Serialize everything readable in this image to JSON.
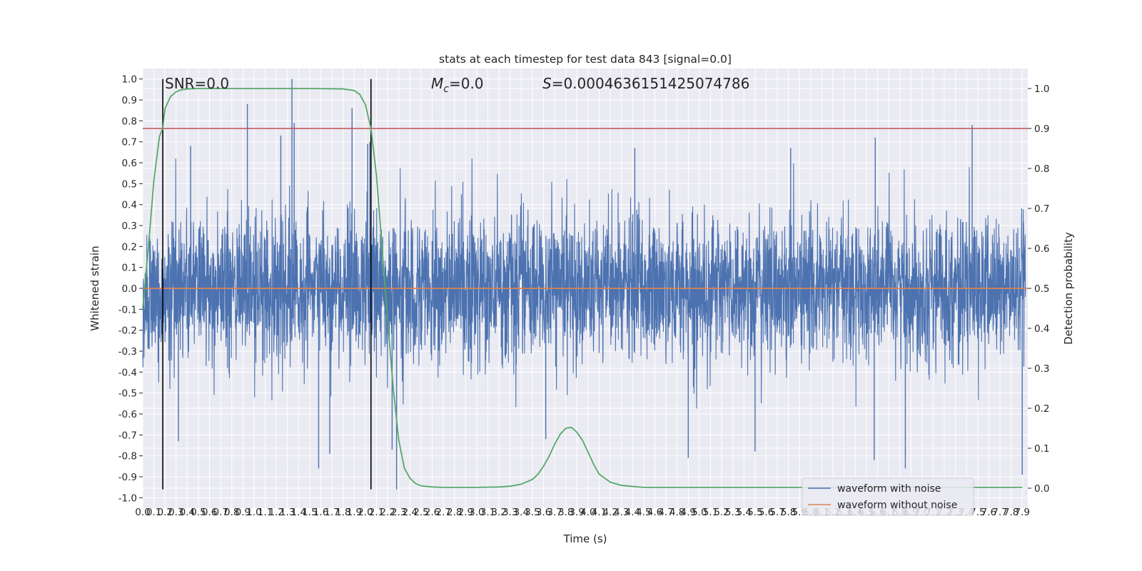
{
  "chart_data": {
    "type": "line",
    "title": "stats at each timestep for test data 843 [signal=0.0]",
    "xlabel": "Time (s)",
    "ylabel": "Whitened strain",
    "y2label": "Detection probability",
    "xlim": [
      0.0,
      7.95
    ],
    "ylim": [
      -1.05,
      1.05
    ],
    "y2lim": [
      -0.05,
      1.05
    ],
    "grid": true,
    "x_ticks_step": 0.1,
    "y_ticks": [
      -1.0,
      -0.9,
      -0.8,
      -0.7,
      -0.6,
      -0.5,
      -0.4,
      -0.3,
      -0.2,
      -0.1,
      0.0,
      0.1,
      0.2,
      0.3,
      0.4,
      0.5,
      0.6,
      0.7,
      0.8,
      0.9,
      1.0
    ],
    "y2_ticks": [
      0.0,
      0.1,
      0.2,
      0.3,
      0.4,
      0.5,
      0.6,
      0.7,
      0.8,
      0.9,
      1.0
    ],
    "annotations": {
      "snr": "SNR=0.0",
      "mc_symbol": "M",
      "mc_sub": "c",
      "mc_value": "=0.0",
      "s_symbol": "S",
      "s_value": "=0.0004636151425074786"
    },
    "threshold_line": {
      "y2": 0.9,
      "color": "#c44e52"
    },
    "vertical_lines": [
      {
        "x": 0.18,
        "ymin": -0.96,
        "ymax": 1.0
      },
      {
        "x": 2.05,
        "ymin": -0.96,
        "ymax": 1.0
      }
    ],
    "series": [
      {
        "name": "waveform with noise",
        "color": "#4c72b0",
        "axis": "left",
        "samples": 4096,
        "noise_sigma": 0.17,
        "peaks": [
          {
            "x": 0.94,
            "y": 0.88
          },
          {
            "x": 1.34,
            "y": 1.0
          },
          {
            "x": 1.36,
            "y": 0.79
          },
          {
            "x": 1.24,
            "y": 0.73
          },
          {
            "x": 1.88,
            "y": 0.86
          },
          {
            "x": 2.02,
            "y": 0.69
          },
          {
            "x": 2.04,
            "y": 0.7
          },
          {
            "x": 0.43,
            "y": 0.68
          },
          {
            "x": 7.45,
            "y": 0.78
          },
          {
            "x": 6.58,
            "y": 0.72
          },
          {
            "x": 4.42,
            "y": 0.67
          },
          {
            "x": 5.82,
            "y": 0.67
          },
          {
            "x": 1.58,
            "y": -0.86
          },
          {
            "x": 1.68,
            "y": -0.79
          },
          {
            "x": 2.28,
            "y": -0.96
          },
          {
            "x": 2.24,
            "y": -0.77
          },
          {
            "x": 0.32,
            "y": -0.73
          },
          {
            "x": 6.85,
            "y": -0.86
          },
          {
            "x": 6.57,
            "y": -0.82
          },
          {
            "x": 7.9,
            "y": -0.89
          },
          {
            "x": 4.9,
            "y": -0.81
          },
          {
            "x": 5.5,
            "y": -0.78
          },
          {
            "x": 3.62,
            "y": -0.72
          }
        ]
      },
      {
        "name": "waveform without noise",
        "color": "#dd8452",
        "axis": "left",
        "x": [
          0.0,
          7.95
        ],
        "y": [
          0.0,
          0.0
        ]
      },
      {
        "color": "#55a868",
        "axis": "right",
        "x": [
          0.0,
          0.05,
          0.1,
          0.15,
          0.18,
          0.2,
          0.25,
          0.3,
          0.35,
          0.4,
          0.5,
          0.6,
          0.8,
          1.0,
          1.5,
          1.8,
          1.9,
          1.95,
          2.0,
          2.05,
          2.1,
          2.15,
          2.2,
          2.25,
          2.3,
          2.35,
          2.4,
          2.45,
          2.5,
          2.6,
          2.7,
          2.8,
          3.0,
          3.2,
          3.3,
          3.4,
          3.5,
          3.55,
          3.6,
          3.65,
          3.7,
          3.75,
          3.8,
          3.85,
          3.9,
          3.95,
          4.0,
          4.05,
          4.1,
          4.2,
          4.3,
          4.5,
          5.0,
          6.0,
          7.0,
          7.9
        ],
        "y": [
          0.45,
          0.6,
          0.77,
          0.88,
          0.9,
          0.95,
          0.98,
          0.992,
          0.997,
          0.999,
          1.0,
          1.0,
          1.0,
          1.0,
          1.0,
          0.999,
          0.995,
          0.985,
          0.96,
          0.9,
          0.78,
          0.6,
          0.42,
          0.25,
          0.12,
          0.05,
          0.025,
          0.012,
          0.006,
          0.003,
          0.002,
          0.002,
          0.002,
          0.003,
          0.005,
          0.01,
          0.022,
          0.035,
          0.055,
          0.08,
          0.11,
          0.135,
          0.15,
          0.152,
          0.14,
          0.12,
          0.09,
          0.06,
          0.035,
          0.015,
          0.007,
          0.002,
          0.002,
          0.002,
          0.002,
          0.002
        ]
      }
    ],
    "legend": {
      "position": "lower-right",
      "entries": [
        {
          "label": "waveform with noise",
          "color": "#4c72b0"
        },
        {
          "label": "waveform without noise",
          "color": "#dd8452"
        }
      ]
    },
    "colors": {
      "plot_background": "#eaeaf2",
      "grid": "#ffffff",
      "vline": "#000000"
    }
  }
}
